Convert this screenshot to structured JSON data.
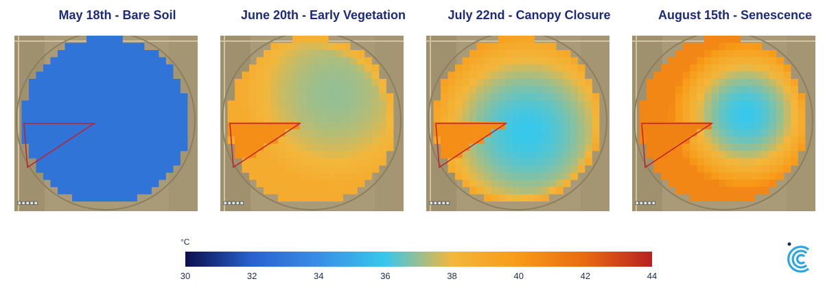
{
  "chart_data": {
    "type": "heatmap",
    "colorbar": {
      "unit": "°C",
      "min": 30,
      "max": 44,
      "ticks": [
        30,
        32,
        34,
        36,
        38,
        40,
        42,
        44
      ],
      "colors": [
        "#0d0d4a",
        "#2962cf",
        "#3a8ee6",
        "#37c8ec",
        "#f3b73b",
        "#f89a18",
        "#e86a10",
        "#b82020"
      ]
    },
    "panels": [
      {
        "title": "May 18th - Bare Soil",
        "dominant_temp": 32.8,
        "edge_temp": 32.8,
        "hot_wedge_temp": 32.8,
        "cool_center": [
          0.5,
          0.5
        ],
        "cool_radius": 0.9
      },
      {
        "title": "June 20th - Early Vegetation",
        "dominant_temp": 37,
        "edge_temp": 38.8,
        "hot_wedge_temp": 40.5,
        "cool_center": [
          0.62,
          0.33
        ],
        "cool_radius": 0.55
      },
      {
        "title": "July 22nd - Canopy Closure",
        "dominant_temp": 36,
        "edge_temp": 39.8,
        "hot_wedge_temp": 40.5,
        "cool_center": [
          0.55,
          0.55
        ],
        "cool_radius": 0.6
      },
      {
        "title": "August 15th - Senescence",
        "dominant_temp": 36,
        "edge_temp": 40.8,
        "hot_wedge_temp": 41,
        "cool_center": [
          0.62,
          0.45
        ],
        "cool_radius": 0.45
      }
    ]
  }
}
